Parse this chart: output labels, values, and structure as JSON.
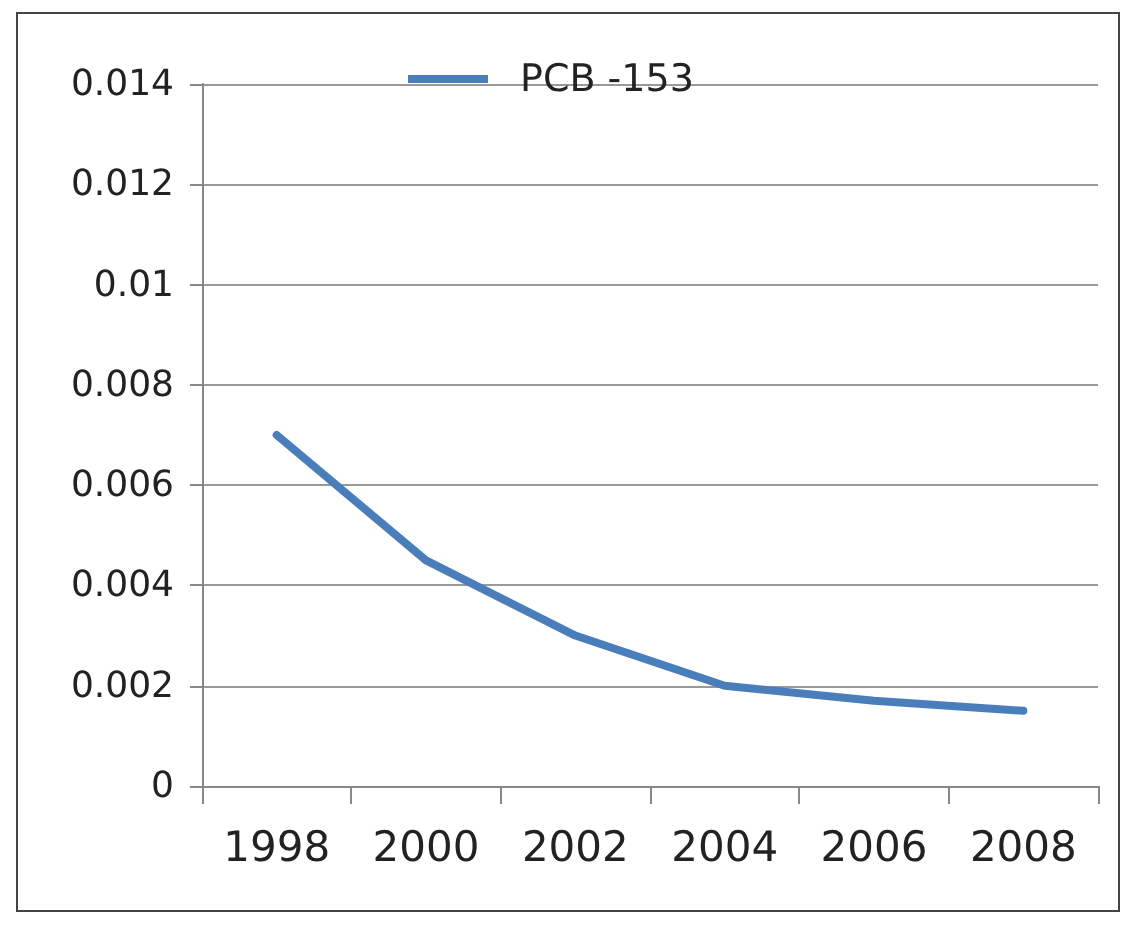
{
  "chart_data": {
    "type": "line",
    "categories": [
      "1998",
      "2000",
      "2002",
      "2004",
      "2006",
      "2008"
    ],
    "series": [
      {
        "name": "PCB -153",
        "color": "#4a7ebb",
        "values": [
          0.007,
          0.0045,
          0.003,
          0.002,
          0.0017,
          0.0015
        ]
      }
    ],
    "ylim": [
      0,
      0.014
    ],
    "yticks": [
      0,
      0.002,
      0.004,
      0.006,
      0.008,
      0.01,
      0.012,
      0.014
    ],
    "grid": "y",
    "legend": "top",
    "marker": "none",
    "line_style": "solid"
  }
}
